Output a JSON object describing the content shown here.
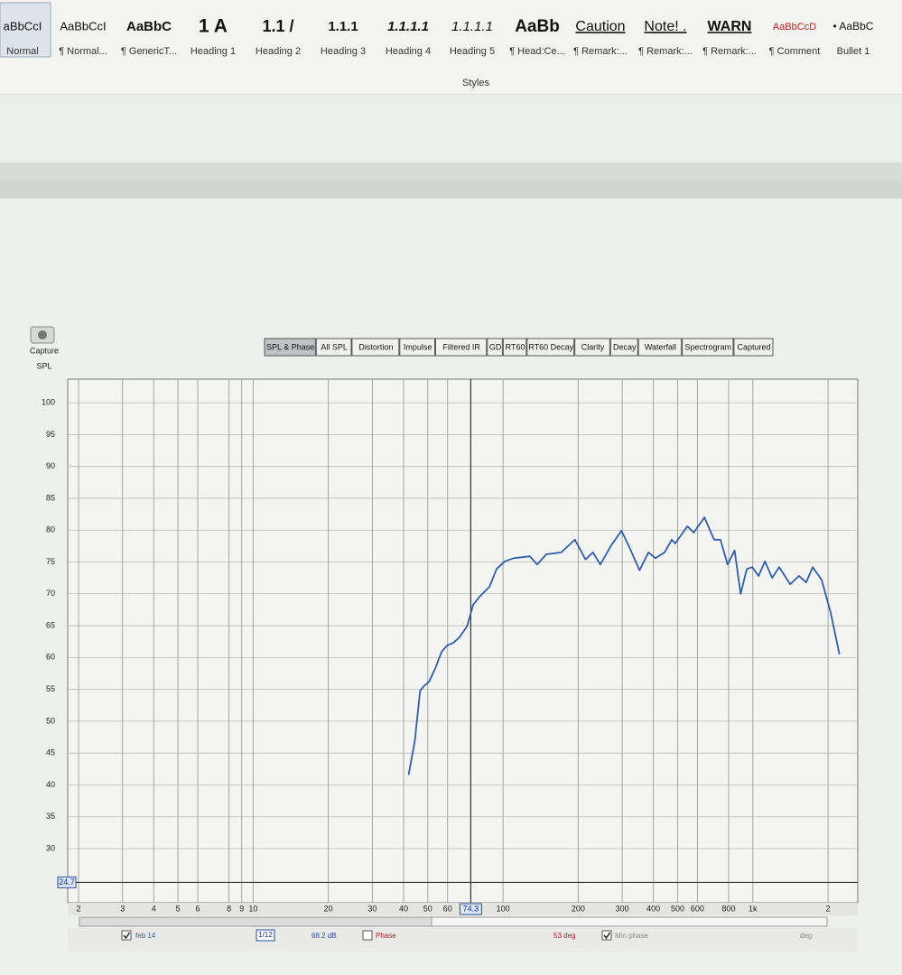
{
  "ribbon": {
    "styles": [
      {
        "preview": "aBbCcI",
        "name": "Normal"
      },
      {
        "preview": "AaBbCcI",
        "name": "¶ Normal..."
      },
      {
        "preview": "AaBbC",
        "name": "¶ GenericT..."
      },
      {
        "preview": "1 A",
        "name": "Heading 1"
      },
      {
        "preview": "1.1 /",
        "name": "Heading 2"
      },
      {
        "preview": "1.1.1",
        "name": "Heading 3"
      },
      {
        "preview": "1.1.1.1",
        "name": "Heading 4"
      },
      {
        "preview": "1.1.1.1",
        "name": "Heading 5"
      },
      {
        "preview": "AaBb",
        "name": "¶ Head:Ce..."
      },
      {
        "preview": "Caution",
        "name": "¶ Remark:..."
      },
      {
        "preview": "Note! .",
        "name": "¶ Remark:..."
      },
      {
        "preview": "WARN",
        "name": "¶ Remark:..."
      },
      {
        "preview": "AaBbCcD",
        "name": "¶ Comment"
      },
      {
        "preview": "• AaBbC",
        "name": "Bullet 1"
      }
    ],
    "group": "Styles"
  },
  "capture_label": "Capture",
  "tabs": {
    "items": [
      "SPL & Phase",
      "All SPL",
      "Distortion",
      "Impulse",
      "Filtered IR",
      "GD",
      "RT60",
      "RT60 Decay",
      "Clarity",
      "Decay",
      "Waterfall",
      "Spectrogram",
      "Captured"
    ],
    "selected": 0
  },
  "chart_data": {
    "type": "line",
    "y_label": "SPL",
    "log_x": true,
    "grid": true,
    "xlim": [
      1.81,
      2630
    ],
    "ylim": [
      21.5,
      103.7
    ],
    "xticks": [
      2,
      3,
      4,
      5,
      6,
      8,
      9,
      10,
      20,
      30,
      40,
      50,
      60,
      100,
      200,
      300,
      400,
      500,
      600,
      800,
      {
        "value": 1000,
        "label": "1k"
      },
      {
        "value": 2000,
        "label": "2"
      }
    ],
    "yticks": [
      30,
      35,
      40,
      45,
      50,
      55,
      60,
      65,
      70,
      75,
      80,
      85,
      90,
      95,
      100
    ],
    "cursor_x": 74.3,
    "cursor_y": 24.7,
    "x": [
      41.9,
      44.4,
      46.6,
      48.2,
      50.6,
      53.7,
      56.8,
      59.8,
      63.3,
      67,
      71.8,
      76,
      81.2,
      88.3,
      94.3,
      101.6,
      110.3,
      128,
      137,
      149,
      171,
      194,
      214,
      229,
      245,
      271,
      298,
      319,
      352,
      382,
      408,
      443,
      474,
      489,
      547,
      580,
      640,
      700,
      742,
      792,
      845,
      894,
      946,
      994,
      1055,
      1118,
      1195,
      1275,
      1410,
      1530,
      1635,
      1736,
      1885,
      2048,
      2222
    ],
    "series": [
      {
        "name": "feb 14",
        "color": "#2f5ea8",
        "values": [
          41.6,
          47,
          54.8,
          55.5,
          56.2,
          58.4,
          60.9,
          61.9,
          62.3,
          63.2,
          64.9,
          68.3,
          69.7,
          71.1,
          73.9,
          75.1,
          75.6,
          75.9,
          74.6,
          76.2,
          76.5,
          78.5,
          75.4,
          76.5,
          74.6,
          77.6,
          79.9,
          77.5,
          73.7,
          76.5,
          75.6,
          76.5,
          78.5,
          77.9,
          80.6,
          79.6,
          82,
          78.5,
          78.5,
          74.6,
          76.8,
          70,
          73.9,
          74.2,
          72.8,
          75.1,
          72.5,
          74.2,
          71.5,
          72.8,
          71.8,
          74.2,
          72.2,
          67.1,
          60.5
        ]
      }
    ]
  },
  "status": {
    "measurement_checked": true,
    "smoothing": "1/12",
    "spl_readout": "68.2 dB",
    "phase": "Phase",
    "phase_checked": false,
    "phase_readout": "53 deg",
    "min_phase": "Min phase",
    "min_phase_checked": true,
    "unit": "deg"
  }
}
